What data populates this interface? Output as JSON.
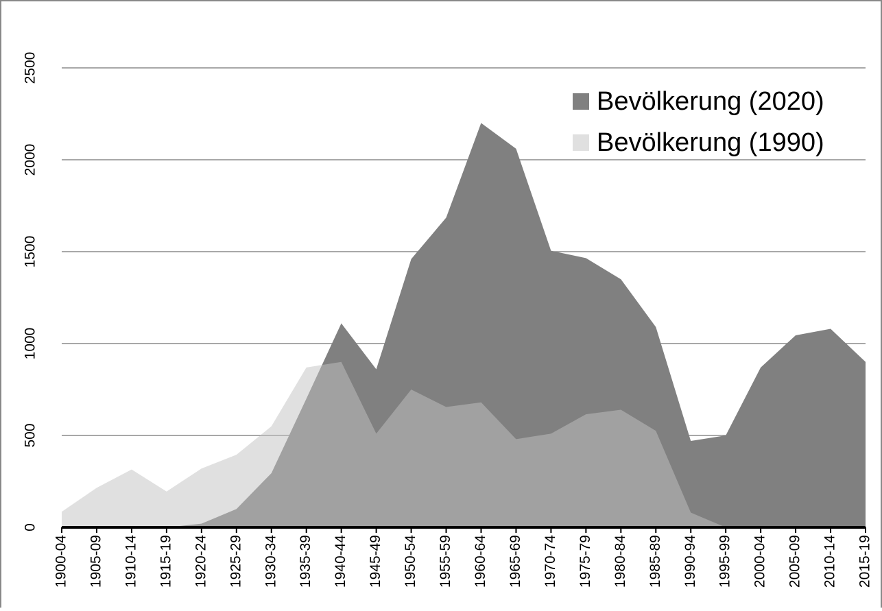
{
  "chart_data": {
    "type": "area",
    "categories": [
      "1900-04",
      "1905-09",
      "1910-14",
      "1915-19",
      "1920-24",
      "1925-29",
      "1930-34",
      "1935-39",
      "1940-44",
      "1945-49",
      "1950-54",
      "1955-59",
      "1960-64",
      "1965-69",
      "1970-74",
      "1975-79",
      "1980-84",
      "1985-89",
      "1990-94",
      "1995-99",
      "2000-04",
      "2005-09",
      "2010-14",
      "2015-19"
    ],
    "series": [
      {
        "name": "Bevölkerung (2020)",
        "color": "#808080",
        "values": [
          0,
          0,
          0,
          0,
          20,
          100,
          295,
          700,
          1110,
          860,
          1460,
          1685,
          2200,
          2060,
          1505,
          1465,
          1350,
          1090,
          470,
          500,
          870,
          1045,
          1080,
          900
        ]
      },
      {
        "name": "Bevölkerung (1990)",
        "color": "#c1c1c1",
        "values": [
          85,
          215,
          315,
          195,
          320,
          395,
          550,
          870,
          900,
          510,
          750,
          655,
          680,
          480,
          510,
          615,
          640,
          525,
          80,
          0,
          null,
          null,
          null,
          null
        ]
      }
    ],
    "ylim": [
      0,
      2500
    ],
    "yticks": [
      0,
      500,
      1000,
      1500,
      2000,
      2500
    ],
    "grid": true,
    "legend": "top-right"
  }
}
